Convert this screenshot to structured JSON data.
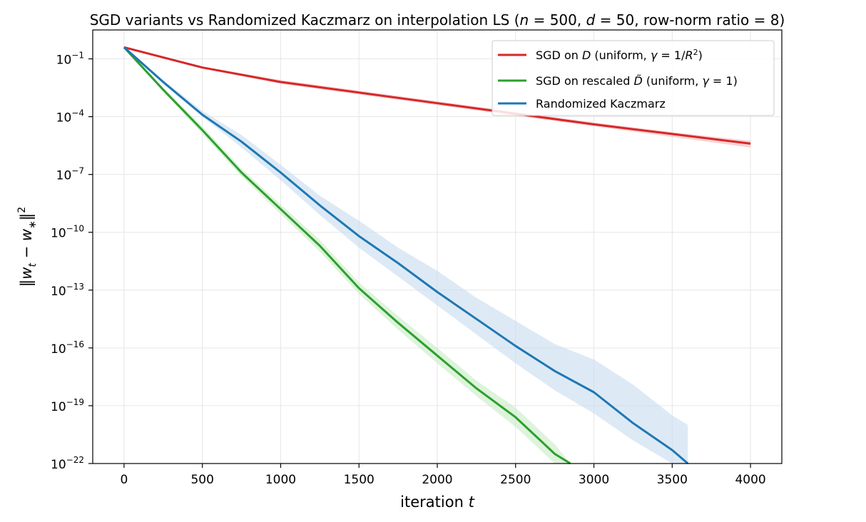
{
  "chart_data": {
    "type": "line",
    "title": "SGD variants vs Randomized Kaczmarz on interpolation LS  (n = 500,  d = 50, row-norm ratio  = 8)",
    "xlabel": "iteration t",
    "ylabel": "‖w_t − w_*‖²",
    "yscale": "log",
    "xlim": [
      -200,
      4200
    ],
    "ylim_log10": [
      -22,
      0.5
    ],
    "xticks": [
      0,
      500,
      1000,
      1500,
      2000,
      2500,
      3000,
      3500,
      4000
    ],
    "yticks_log10": [
      -1,
      -4,
      -7,
      -10,
      -13,
      -16,
      -19,
      -22
    ],
    "ytick_labels": [
      "10^-1",
      "10^-4",
      "10^-7",
      "10^-10",
      "10^-13",
      "10^-16",
      "10^-19",
      "10^-22"
    ],
    "grid": true,
    "legend_position": "upper right",
    "series": [
      {
        "name": "SGD on D (uniform, γ = 1/R²)",
        "color": "#d62728",
        "band_color": "#f4b6b6",
        "x": [
          0,
          500,
          1000,
          1500,
          2000,
          2500,
          3000,
          3500,
          4000
        ],
        "log10_y": [
          -0.4,
          -1.45,
          -2.2,
          -2.75,
          -3.3,
          -3.85,
          -4.4,
          -4.9,
          -5.4
        ],
        "log10_band_low": [
          -0.4,
          -1.5,
          -2.3,
          -2.85,
          -3.4,
          -3.95,
          -4.5,
          -5.05,
          -5.6
        ],
        "log10_band_high": [
          -0.4,
          -1.4,
          -2.1,
          -2.65,
          -3.2,
          -3.75,
          -4.3,
          -4.8,
          -5.25
        ]
      },
      {
        "name": "SGD on rescaled D̃ (uniform, γ = 1)",
        "color": "#2ca02c",
        "band_color": "#c8ebc4",
        "x": [
          0,
          250,
          500,
          750,
          1000,
          1250,
          1500,
          1750,
          2000,
          2250,
          2500,
          2750,
          2850
        ],
        "log10_y": [
          -0.4,
          -2.6,
          -4.7,
          -6.9,
          -8.8,
          -10.7,
          -12.9,
          -14.7,
          -16.4,
          -18.1,
          -19.6,
          -21.5,
          -22.3
        ],
        "log10_band_low": [
          -0.4,
          -2.7,
          -4.9,
          -7.1,
          -9.05,
          -11.0,
          -13.2,
          -15.05,
          -16.8,
          -18.5,
          -20.1,
          -22.1,
          -22.5
        ],
        "log10_band_high": [
          -0.4,
          -2.5,
          -4.5,
          -6.7,
          -8.55,
          -10.4,
          -12.6,
          -14.35,
          -16.0,
          -17.7,
          -19.1,
          -21.0,
          -22.0
        ]
      },
      {
        "name": "Randomized Kaczmarz",
        "color": "#1f77b4",
        "band_color": "#c6dcef",
        "x": [
          0,
          250,
          500,
          750,
          1000,
          1250,
          1500,
          1750,
          2000,
          2250,
          2500,
          2750,
          3000,
          3250,
          3500,
          3600
        ],
        "log10_y": [
          -0.4,
          -2.2,
          -3.9,
          -5.3,
          -6.9,
          -8.6,
          -10.2,
          -11.6,
          -13.1,
          -14.5,
          -15.9,
          -17.2,
          -18.3,
          -19.9,
          -21.3,
          -22.2
        ],
        "log10_band_low": [
          -0.4,
          -2.3,
          -4.0,
          -5.6,
          -7.3,
          -9.1,
          -10.8,
          -12.3,
          -13.8,
          -15.3,
          -16.8,
          -18.2,
          -19.4,
          -20.8,
          -22.3,
          -22.5
        ],
        "log10_band_high": [
          -0.4,
          -2.1,
          -3.7,
          -4.95,
          -6.5,
          -8.1,
          -9.4,
          -10.8,
          -12.0,
          -13.4,
          -14.6,
          -15.8,
          -16.6,
          -17.9,
          -19.5,
          -20.0
        ]
      }
    ]
  }
}
